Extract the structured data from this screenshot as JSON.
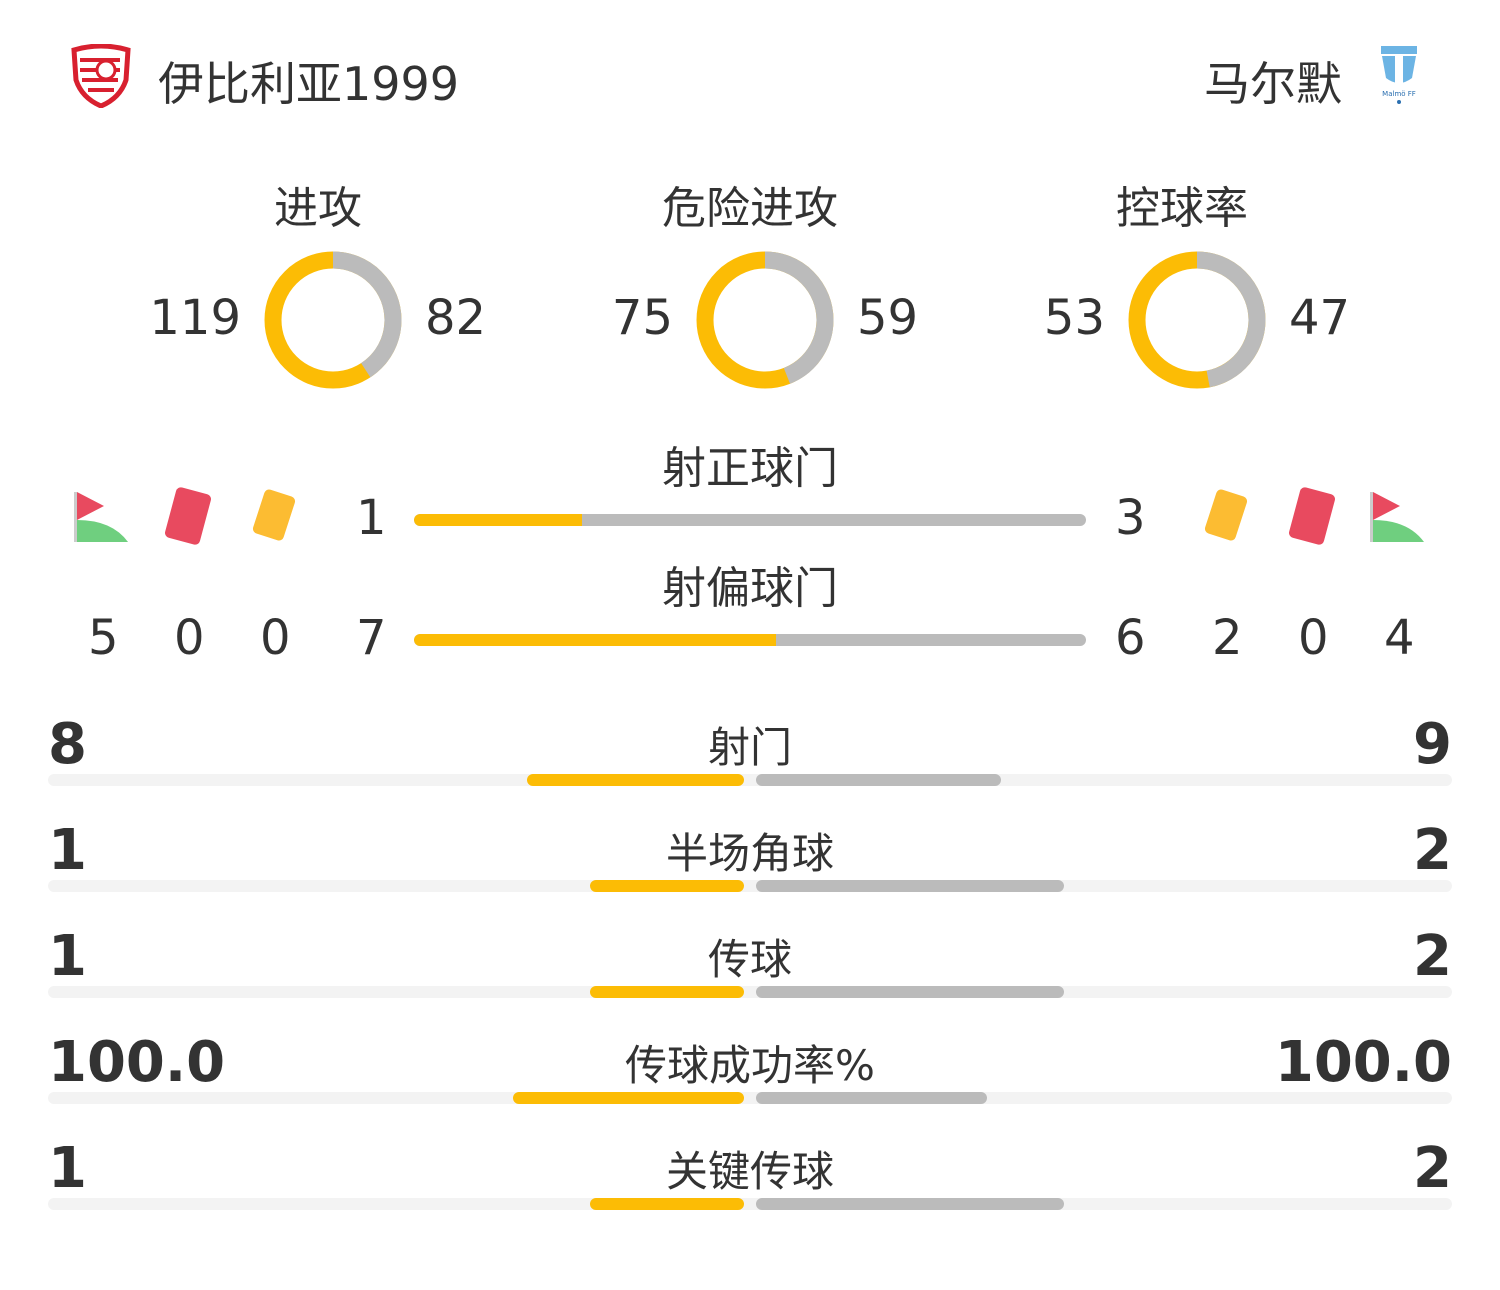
{
  "home": {
    "name": "伊比利亚1999",
    "logo": "shield-eagle-red"
  },
  "away": {
    "name": "马尔默",
    "logo": "malmo-ff-crest",
    "logo_text": "Malmö FF"
  },
  "colors": {
    "home": "#fcbc05",
    "away": "#bbbbbb"
  },
  "donuts": [
    {
      "label": "进攻",
      "home": 119,
      "away": 82
    },
    {
      "label": "危险进攻",
      "home": 75,
      "away": 59
    },
    {
      "label": "控球率",
      "home": 53,
      "away": 47
    }
  ],
  "on_target": {
    "label": "射正球门",
    "home": 1,
    "away": 3
  },
  "off_target": {
    "label": "射偏球门",
    "home": 7,
    "away": 6
  },
  "home_counts": {
    "corners": 5,
    "red_cards": 0,
    "yellow_cards": 0
  },
  "away_counts": {
    "yellow_cards": 2,
    "red_cards": 0,
    "corners": 4
  },
  "rows": [
    {
      "label": "射门",
      "home": "8",
      "away": "9"
    },
    {
      "label": "半场角球",
      "home": "1",
      "away": "2"
    },
    {
      "label": "传球",
      "home": "1",
      "away": "2"
    },
    {
      "label": "传球成功率%",
      "home": "100.0",
      "away": "100.0"
    },
    {
      "label": "关键传球",
      "home": "1",
      "away": "2"
    }
  ]
}
